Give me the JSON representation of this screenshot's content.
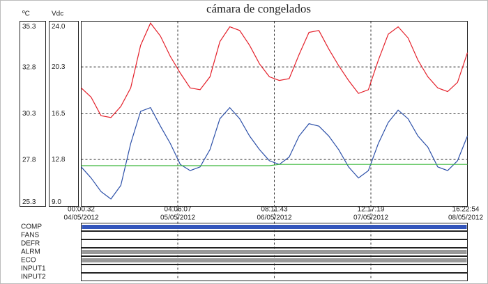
{
  "chart_data": {
    "type": "line",
    "title": "cámara de congelados",
    "y_unit": "ºC",
    "y2_unit": "Vdc",
    "ylim": [
      25.3,
      35.3
    ],
    "yticks": [
      35.3,
      32.8,
      30.3,
      27.8,
      25.3
    ],
    "y2lim": [
      9.0,
      24.0
    ],
    "y2ticks": [
      {
        "value": 24.0,
        "label": "24.0"
      },
      20.3,
      16.5,
      12.8,
      {
        "value": 9.0,
        "label": "9.0"
      }
    ],
    "grid": true,
    "xtick_labels": [
      [
        "00:00:32",
        "04/05/2012"
      ],
      [
        "04:06:07",
        "05/05/2012"
      ],
      [
        "08:11:43",
        "06/05/2012"
      ],
      [
        "12:17:19",
        "07/05/2012"
      ],
      [
        "16:22:54",
        "08/05/2012"
      ]
    ],
    "series": [
      {
        "color": "#e4202a",
        "axis": "y",
        "values": [
          31.7,
          31.2,
          30.2,
          30.1,
          30.7,
          31.7,
          34.0,
          35.2,
          34.5,
          33.4,
          32.5,
          31.7,
          31.6,
          32.3,
          34.2,
          35.0,
          34.8,
          34.0,
          33.0,
          32.3,
          32.1,
          32.2,
          33.5,
          34.7,
          34.8,
          33.8,
          32.9,
          32.1,
          31.4,
          31.6,
          33.2,
          34.6,
          35.0,
          34.4,
          33.2,
          32.3,
          31.7,
          31.5,
          32.0,
          33.6
        ]
      },
      {
        "color": "#2b4fa8",
        "axis": "y2",
        "values": [
          12.2,
          11.3,
          10.2,
          9.6,
          10.7,
          14.1,
          16.7,
          17.0,
          15.5,
          14.1,
          12.4,
          11.9,
          12.2,
          13.6,
          16.1,
          17.0,
          16.1,
          14.7,
          13.6,
          12.7,
          12.4,
          13.0,
          14.7,
          15.7,
          15.5,
          14.7,
          13.6,
          12.2,
          11.3,
          11.9,
          14.1,
          15.8,
          16.8,
          16.1,
          14.7,
          13.8,
          12.2,
          11.9,
          12.7,
          14.7
        ]
      },
      {
        "color": "#3cb83c",
        "axis": "y2",
        "values": [
          12.3,
          12.3,
          12.3,
          12.3,
          12.3,
          12.3,
          12.3,
          12.3,
          12.3,
          12.3,
          12.3,
          12.3,
          12.3,
          12.3,
          12.3,
          12.3,
          12.3,
          12.3,
          12.3,
          12.3,
          12.4,
          12.4,
          12.4,
          12.4,
          12.4,
          12.4,
          12.4,
          12.4,
          12.4,
          12.4,
          12.4,
          12.4,
          12.4,
          12.4,
          12.4,
          12.4,
          12.4,
          12.4,
          12.4,
          12.4
        ]
      }
    ],
    "digital_channels": [
      {
        "label": "COMP",
        "active": true,
        "color": "#3355bb"
      },
      {
        "label": "FANS",
        "active": false,
        "color": "#999999"
      },
      {
        "label": "DEFR",
        "active": false,
        "color": "#999999"
      },
      {
        "label": "ALRM",
        "active": true,
        "color": "#999999"
      },
      {
        "label": "ECO",
        "active": true,
        "color": "#999999"
      },
      {
        "label": "INPUT1",
        "active": false,
        "color": "#999999"
      },
      {
        "label": "INPUT2",
        "active": false,
        "color": "#999999"
      }
    ]
  }
}
